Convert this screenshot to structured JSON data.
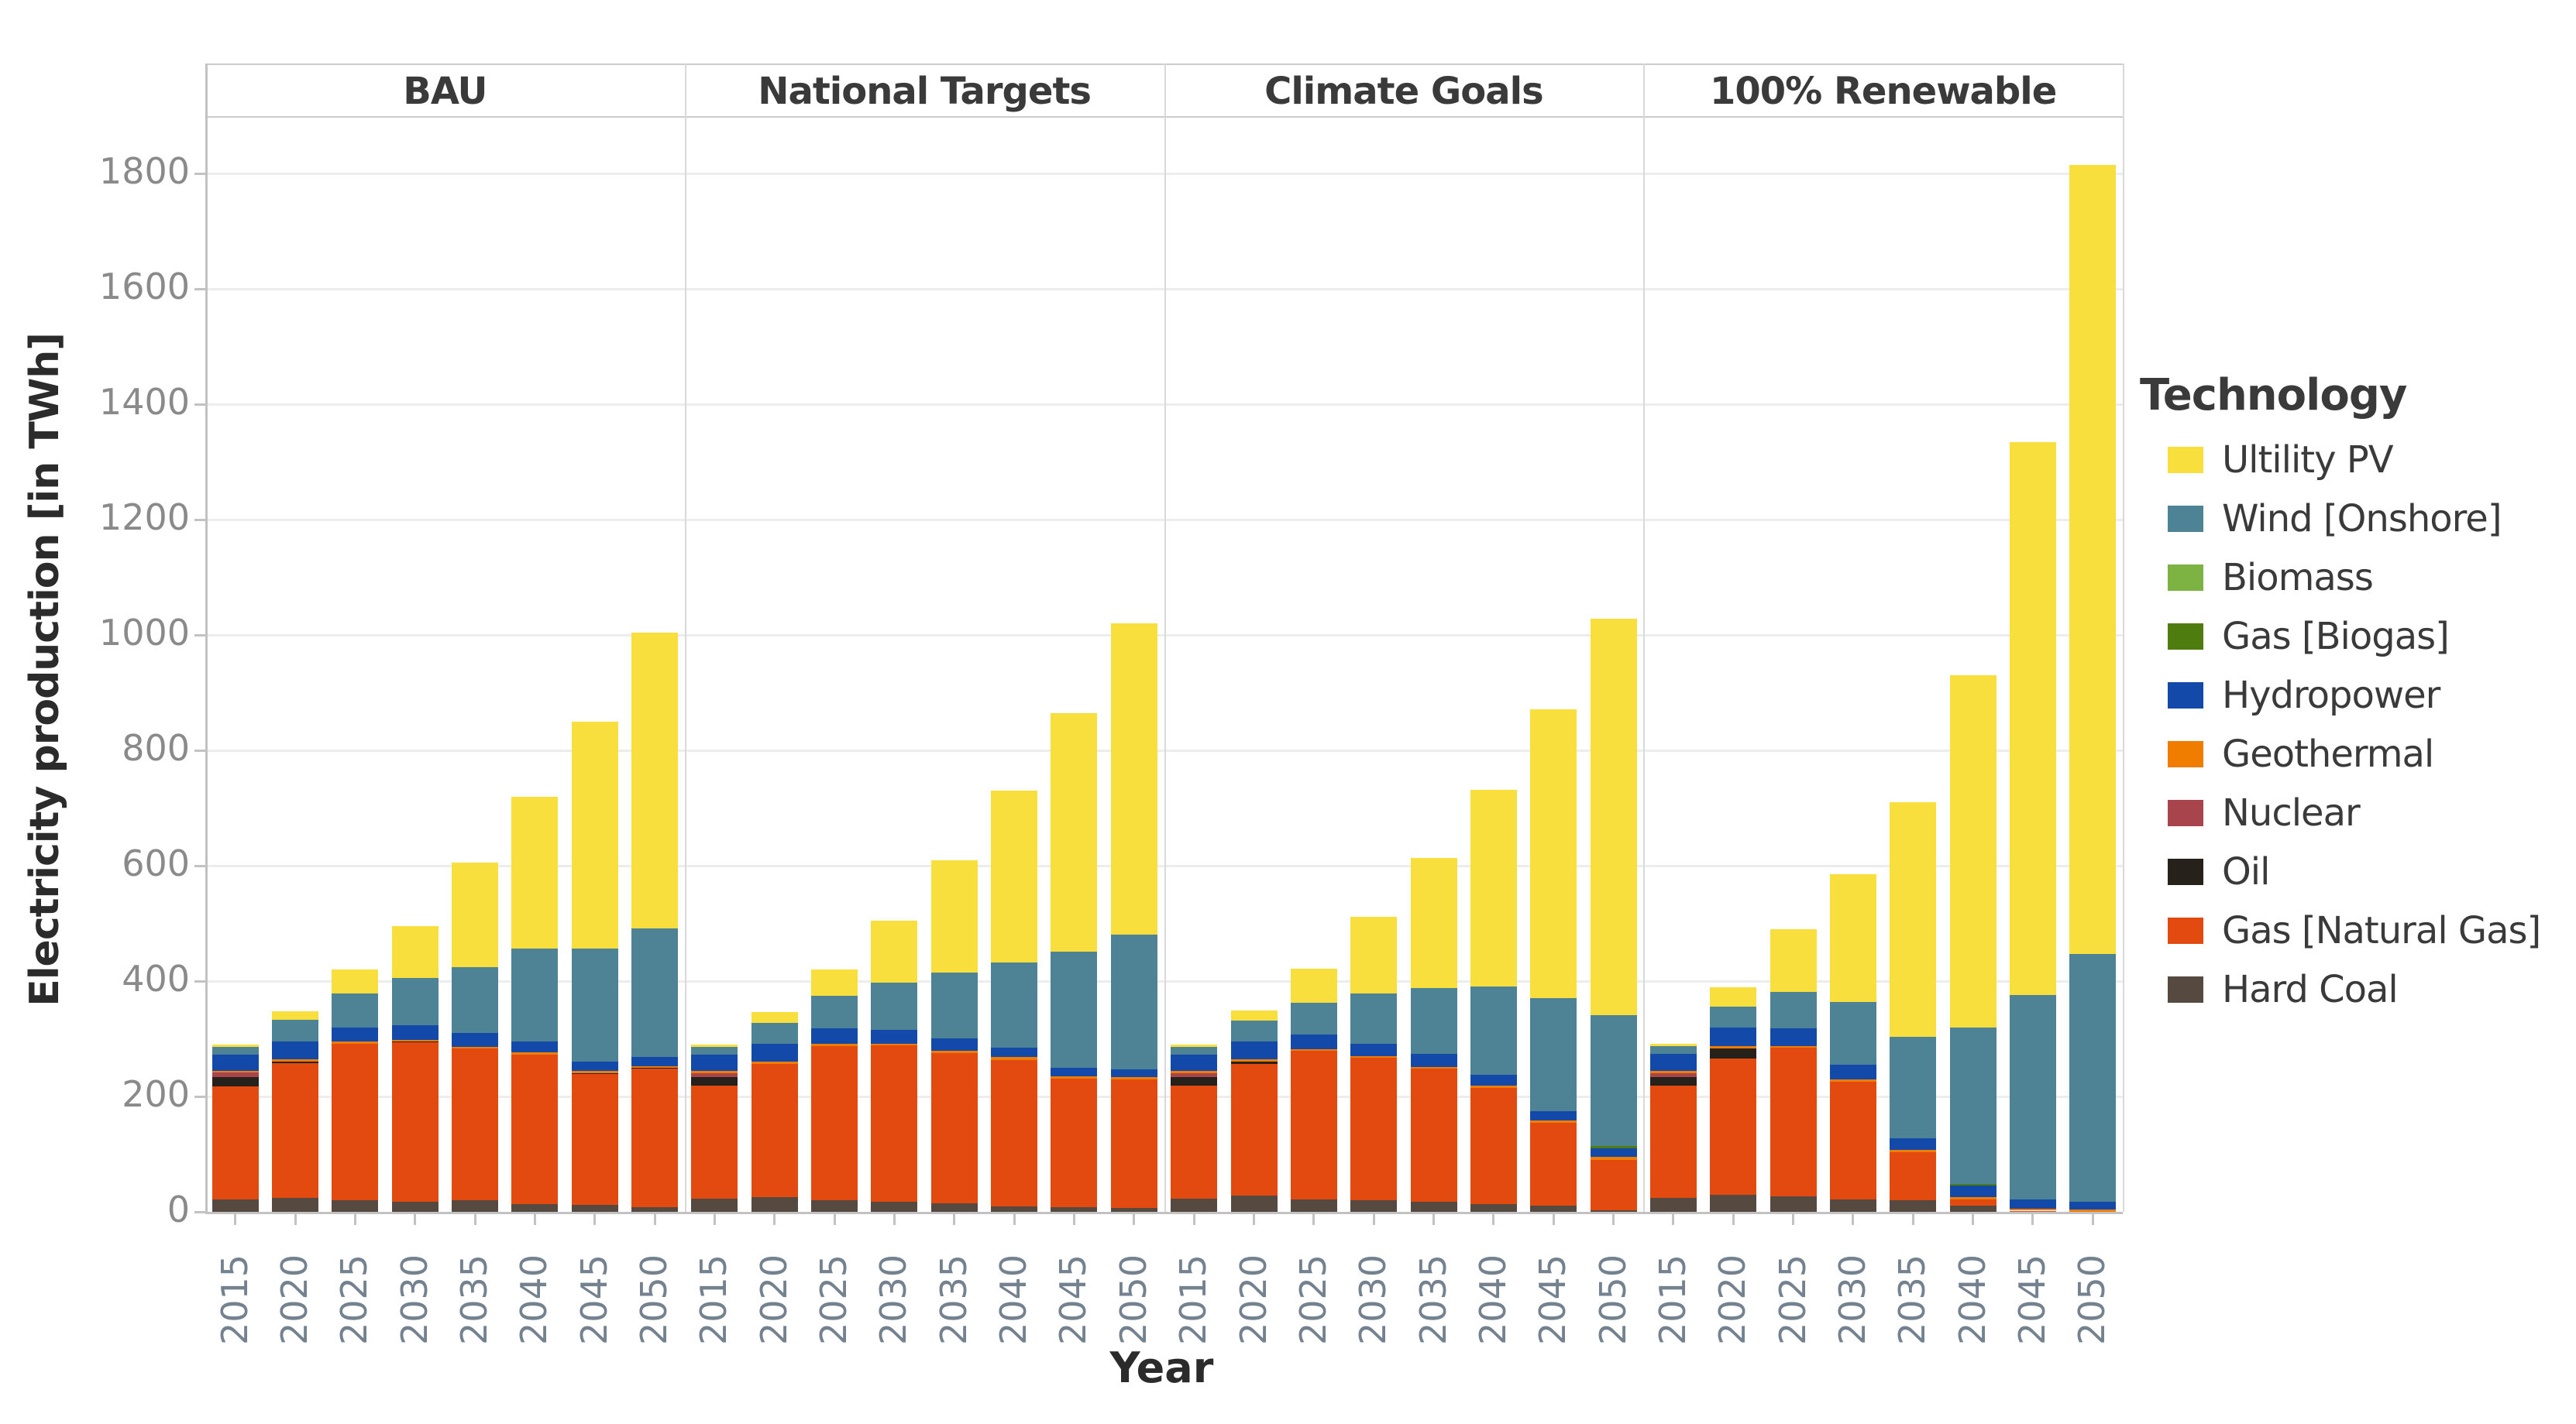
{
  "axes": {
    "y_title": "Electricity production [in TWh]",
    "x_title": "Year",
    "y_tick_labels": [
      "0",
      "200",
      "400",
      "600",
      "800",
      "1000",
      "1200",
      "1400",
      "1600",
      "1800"
    ]
  },
  "legend": {
    "title": "Technology",
    "items": [
      {
        "label": "Ultility PV",
        "color": "#F9DF3D"
      },
      {
        "label": "Wind [Onshore]",
        "color": "#4E8396"
      },
      {
        "label": "Biomass",
        "color": "#7CB342"
      },
      {
        "label": "Gas [Biogas]",
        "color": "#4E7C0E"
      },
      {
        "label": "Hydropower",
        "color": "#1349A8"
      },
      {
        "label": "Geothermal",
        "color": "#F07D00"
      },
      {
        "label": "Nuclear",
        "color": "#A8454C"
      },
      {
        "label": "Oil",
        "color": "#26211B"
      },
      {
        "label": "Gas [Natural Gas]",
        "color": "#E34A10"
      },
      {
        "label": "Hard Coal",
        "color": "#554940"
      }
    ]
  },
  "chart_data": {
    "type": "bar",
    "stacked": true,
    "grid": true,
    "legend_position": "right",
    "title": "",
    "xlabel": "Year",
    "ylabel": "Electricity production [in TWh]",
    "ylim": [
      0,
      1900
    ],
    "y_ticks": [
      0,
      200,
      400,
      600,
      800,
      1000,
      1200,
      1400,
      1600,
      1800
    ],
    "categories": [
      "2015",
      "2020",
      "2025",
      "2030",
      "2035",
      "2040",
      "2045",
      "2050"
    ],
    "stack_order_note": "series listed bottom-to-top of the stack; values in TWh per year 2015-2050",
    "facets": [
      {
        "label": "BAU",
        "series": [
          {
            "name": "Hard Coal",
            "color": "#554940",
            "values": [
              22,
              24,
              20,
              18,
              20,
              14,
              12,
              8
            ]
          },
          {
            "name": "Gas [Natural Gas]",
            "color": "#E34A10",
            "values": [
              196,
              234,
              271,
              276,
              263,
              258,
              227,
              240
            ]
          },
          {
            "name": "Oil",
            "color": "#26211B",
            "values": [
              16,
              2,
              0,
              2,
              0,
              0,
              2,
              2
            ]
          },
          {
            "name": "Nuclear",
            "color": "#A8454C",
            "values": [
              8,
              0,
              0,
              0,
              0,
              0,
              0,
              0
            ]
          },
          {
            "name": "Geothermal",
            "color": "#F07D00",
            "values": [
              3,
              5,
              4,
              2,
              3,
              4,
              3,
              3
            ]
          },
          {
            "name": "Hydropower",
            "color": "#1349A8",
            "values": [
              28,
              30,
              24,
              26,
              24,
              20,
              16,
              15
            ]
          },
          {
            "name": "Gas [Biogas]",
            "color": "#4E7C0E",
            "values": [
              0,
              0,
              0,
              0,
              0,
              0,
              0,
              0
            ]
          },
          {
            "name": "Biomass",
            "color": "#7CB342",
            "values": [
              0,
              0,
              0,
              0,
              0,
              0,
              0,
              0
            ]
          },
          {
            "name": "Wind [Onshore]",
            "color": "#4E8396",
            "values": [
              13,
              38,
              60,
              82,
              114,
              160,
              197,
              223
            ]
          },
          {
            "name": "Ultility PV",
            "color": "#F9DF3D",
            "values": [
              4,
              15,
              41,
              89,
              181,
              264,
              393,
              514
            ]
          }
        ]
      },
      {
        "label": "National Targets",
        "series": [
          {
            "name": "Hard Coal",
            "color": "#554940",
            "values": [
              23,
              25,
              20,
              17,
              15,
              10,
              8,
              7
            ]
          },
          {
            "name": "Gas [Natural Gas]",
            "color": "#E34A10",
            "values": [
              196,
              231,
              268,
              272,
              260,
              253,
              223,
              223
            ]
          },
          {
            "name": "Oil",
            "color": "#26211B",
            "values": [
              15,
              0,
              0,
              0,
              0,
              0,
              0,
              0
            ]
          },
          {
            "name": "Nuclear",
            "color": "#A8454C",
            "values": [
              7,
              0,
              0,
              0,
              0,
              0,
              0,
              0
            ]
          },
          {
            "name": "Geothermal",
            "color": "#F07D00",
            "values": [
              3,
              5,
              4,
              3,
              4,
              5,
              4,
              3
            ]
          },
          {
            "name": "Hydropower",
            "color": "#1349A8",
            "values": [
              29,
              31,
              26,
              23,
              22,
              16,
              15,
              14
            ]
          },
          {
            "name": "Gas [Biogas]",
            "color": "#4E7C0E",
            "values": [
              0,
              0,
              0,
              0,
              0,
              0,
              0,
              0
            ]
          },
          {
            "name": "Biomass",
            "color": "#7CB342",
            "values": [
              0,
              0,
              0,
              0,
              0,
              0,
              0,
              0
            ]
          },
          {
            "name": "Wind [Onshore]",
            "color": "#4E8396",
            "values": [
              13,
              36,
              56,
              82,
              114,
              149,
              201,
              234
            ]
          },
          {
            "name": "Ultility PV",
            "color": "#F9DF3D",
            "values": [
              4,
              18,
              46,
              108,
              195,
              297,
              414,
              539
            ]
          }
        ]
      },
      {
        "label": "Climate Goals",
        "series": [
          {
            "name": "Hard Coal",
            "color": "#554940",
            "values": [
              23,
              28,
              22,
              20,
              18,
              13,
              11,
              3
            ]
          },
          {
            "name": "Gas [Natural Gas]",
            "color": "#E34A10",
            "values": [
              196,
              229,
              257,
              247,
              230,
              202,
              144,
              87
            ]
          },
          {
            "name": "Oil",
            "color": "#26211B",
            "values": [
              14,
              3,
              0,
              0,
              0,
              0,
              0,
              0
            ]
          },
          {
            "name": "Nuclear",
            "color": "#A8454C",
            "values": [
              8,
              0,
              0,
              0,
              0,
              0,
              0,
              0
            ]
          },
          {
            "name": "Geothermal",
            "color": "#F07D00",
            "values": [
              3,
              4,
              3,
              3,
              3,
              4,
              3,
              5
            ]
          },
          {
            "name": "Hydropower",
            "color": "#1349A8",
            "values": [
              29,
              31,
              26,
              22,
              23,
              19,
              16,
              15
            ]
          },
          {
            "name": "Gas [Biogas]",
            "color": "#4E7C0E",
            "values": [
              0,
              0,
              0,
              0,
              0,
              0,
              0,
              4
            ]
          },
          {
            "name": "Biomass",
            "color": "#7CB342",
            "values": [
              0,
              0,
              0,
              0,
              0,
              0,
              0,
              0
            ]
          },
          {
            "name": "Wind [Onshore]",
            "color": "#4E8396",
            "values": [
              13,
              36,
              55,
              87,
              114,
              153,
              196,
              227
            ]
          },
          {
            "name": "Ultility PV",
            "color": "#F9DF3D",
            "values": [
              4,
              18,
              59,
              132,
              225,
              341,
              501,
              687
            ]
          }
        ]
      },
      {
        "label": "100% Renewable",
        "series": [
          {
            "name": "Hard Coal",
            "color": "#554940",
            "values": [
              24,
              29,
              27,
              22,
              20,
              11,
              0,
              0
            ]
          },
          {
            "name": "Gas [Natural Gas]",
            "color": "#E34A10",
            "values": [
              195,
              237,
              258,
              203,
              84,
              11,
              2,
              0
            ]
          },
          {
            "name": "Oil",
            "color": "#26211B",
            "values": [
              15,
              17,
              0,
              0,
              0,
              0,
              0,
              0
            ]
          },
          {
            "name": "Nuclear",
            "color": "#A8454C",
            "values": [
              7,
              0,
              0,
              0,
              0,
              0,
              0,
              0
            ]
          },
          {
            "name": "Geothermal",
            "color": "#F07D00",
            "values": [
              3,
              4,
              3,
              4,
              3,
              3,
              3,
              4
            ]
          },
          {
            "name": "Hydropower",
            "color": "#1349A8",
            "values": [
              30,
              32,
              30,
              26,
              20,
              21,
              17,
              14
            ]
          },
          {
            "name": "Gas [Biogas]",
            "color": "#4E7C0E",
            "values": [
              0,
              0,
              0,
              0,
              0,
              2,
              0,
              0
            ]
          },
          {
            "name": "Biomass",
            "color": "#7CB342",
            "values": [
              0,
              0,
              0,
              0,
              0,
              0,
              0,
              0
            ]
          },
          {
            "name": "Wind [Onshore]",
            "color": "#4E8396",
            "values": [
              13,
              37,
              63,
              109,
              177,
              271,
              354,
              429
            ]
          },
          {
            "name": "Ultility PV",
            "color": "#F9DF3D",
            "values": [
              4,
              33,
              109,
              221,
              406,
              611,
              959,
              1368
            ]
          }
        ]
      }
    ]
  }
}
